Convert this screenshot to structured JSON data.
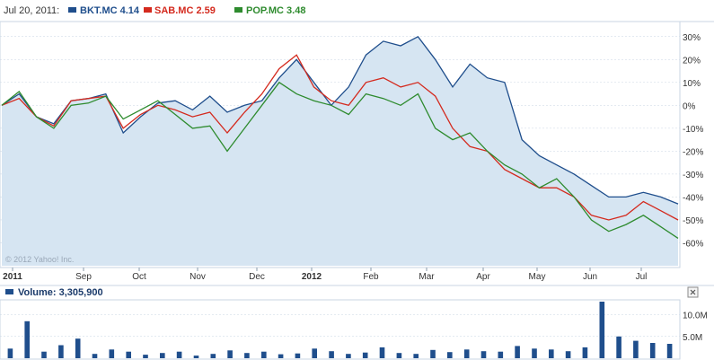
{
  "header": {
    "date_label": "Jul 20, 2011:",
    "series_labels": [
      {
        "name": "BKT.MC 4.14",
        "color": "#1f4e8c"
      },
      {
        "name": "SAB.MC 2.59",
        "color": "#d42a1e"
      },
      {
        "name": "POP.MC 3.48",
        "color": "#2e8b2e"
      }
    ]
  },
  "watermark": "© 2012 Yahoo! Inc.",
  "volume": {
    "label": "Volume: 3,305,900",
    "close_icon": "close-icon",
    "y_ticks": [
      "10.0M",
      "5.0M"
    ],
    "y_values": [
      10000000,
      5000000
    ],
    "max": 13000000
  },
  "colors": {
    "area_fill": "#d6e5f2",
    "bkt": "#1f4e8c",
    "sab": "#d42a1e",
    "pop": "#2e8b2e",
    "volume_bar": "#1f4e8c",
    "grid": "#c9d6e3"
  },
  "chart_data": {
    "type": "line",
    "x_tick_labels": [
      "2011",
      "Sep",
      "Oct",
      "Nov",
      "Dec",
      "2012",
      "Feb",
      "Mar",
      "Apr",
      "May",
      "Jun",
      "Jul"
    ],
    "y_tick_labels": [
      "30%",
      "20%",
      "10%",
      "0%",
      "-10%",
      "-20%",
      "-30%",
      "-40%",
      "-50%",
      "-60%"
    ],
    "y_values": [
      30,
      20,
      10,
      0,
      -10,
      -20,
      -30,
      -40,
      -50,
      -60
    ],
    "ylim": [
      -70,
      35
    ],
    "grid": true,
    "legend": "top-left",
    "series": [
      {
        "name": "BKT.MC 4.14",
        "values": [
          0,
          5,
          -5,
          -8,
          2,
          3,
          5,
          -12,
          -5,
          1,
          2,
          -2,
          4,
          -3,
          0,
          2,
          12,
          20,
          10,
          0,
          8,
          22,
          28,
          26,
          30,
          20,
          8,
          18,
          12,
          10,
          -15,
          -22,
          -26,
          -30,
          -35,
          -40,
          -40,
          -38,
          -40,
          -43
        ]
      },
      {
        "name": "SAB.MC 2.59",
        "values": [
          0,
          3,
          -5,
          -9,
          2,
          3,
          4,
          -10,
          -4,
          0,
          -2,
          -5,
          -3,
          -12,
          -3,
          5,
          16,
          22,
          8,
          2,
          0,
          10,
          12,
          8,
          10,
          4,
          -10,
          -18,
          -20,
          -28,
          -32,
          -36,
          -36,
          -40,
          -48,
          -50,
          -48,
          -42,
          -46,
          -50
        ]
      },
      {
        "name": "POP.MC 3.48",
        "values": [
          0,
          6,
          -5,
          -10,
          0,
          1,
          4,
          -6,
          -2,
          2,
          -4,
          -10,
          -9,
          -20,
          -10,
          0,
          10,
          5,
          2,
          0,
          -4,
          5,
          3,
          0,
          5,
          -10,
          -15,
          -12,
          -20,
          -26,
          -30,
          -36,
          -32,
          -40,
          -50,
          -55,
          -52,
          -48,
          -53,
          -58
        ]
      }
    ],
    "volume_values": [
      2.2,
      8.5,
      1.5,
      3.0,
      4.5,
      1.0,
      2.0,
      1.5,
      0.8,
      1.2,
      1.5,
      0.6,
      1.0,
      1.8,
      1.2,
      1.5,
      0.9,
      1.1,
      2.2,
      1.6,
      1.0,
      1.3,
      2.5,
      1.2,
      1.0,
      1.9,
      1.4,
      2.0,
      1.6,
      1.5,
      2.8,
      2.2,
      2.0,
      1.6,
      2.5,
      13.0,
      5.0,
      4.0,
      3.5,
      3.3
    ]
  }
}
